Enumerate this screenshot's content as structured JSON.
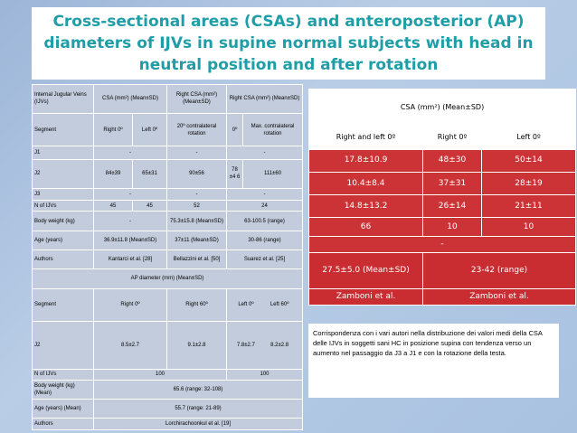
{
  "title": "Cross-sectional areas (CSAs) and anteroposterior (AP) diameters of IJVs in supine normal subjects with head in neutral position and after rotation",
  "left_table": {
    "r1": [
      "Internal Jugular Veins (IJVs)",
      "CSA (mm²) (Mean±SD)",
      "Right CSA (mm²) (Mean±SD)",
      "Right CSA (mm²) (Mean±SD)"
    ],
    "r2": [
      "Segment",
      "Right 0º",
      "Left 0º",
      "20º contralateral rotation",
      "0º",
      "Max. contralateral rotation"
    ],
    "r3": [
      "J1",
      "-",
      "-",
      "-"
    ],
    "r4": [
      "J2",
      "84±39",
      "65±31",
      "90±56",
      "78 ±4 6",
      "111±60"
    ],
    "r5": [
      "J3",
      "-",
      "-",
      "-"
    ],
    "r6": [
      "N of IJVs",
      "45",
      "45",
      "52",
      "24"
    ],
    "r7": [
      "Body weight (kg)",
      "-",
      "75.3±15.8 (Mean±SD)",
      "63-100.5 (range)"
    ],
    "r8": [
      "Age (years)",
      "36.9±11.8 (Mean±SD)",
      "37±11 (Mean±SD)",
      "30-86 (range)"
    ],
    "r9": [
      "Authors",
      "Kantarci et al. [28]",
      "Bellazzini et al. [50]",
      "Suarez et al. [25]"
    ],
    "r10": [
      "AP diameter (mm) (Mean±SD)"
    ],
    "r11": [
      "Segment",
      "Right 0º",
      "Right 60º",
      "Left 0º",
      "Left 60º"
    ],
    "r12": [
      "J2",
      "8.5±2.7",
      "9.1±2.8",
      "7.8±2.7",
      "8.2±2.8"
    ],
    "r13": [
      "N of IJVs",
      "100",
      "100"
    ],
    "r14": [
      "Body weight (kg) (Mean)",
      "65.6 (range: 32-108)"
    ],
    "r15": [
      "Age (years) (Mean)",
      "55.7 (range: 21-89)"
    ],
    "r16": [
      "Authors",
      "Lorchirachoonkul et al. [19]"
    ]
  },
  "right_table": {
    "header": "CSA (mm²) (Mean±SD)",
    "cols": [
      "Right and left 0º",
      "Right 0º",
      "Left 0º"
    ],
    "rows": [
      [
        "17.8±10.9",
        "48±30",
        "50±14"
      ],
      [
        "10.4±8.4",
        "37±31",
        "28±19"
      ],
      [
        "14.8±13.2",
        "26±14",
        "21±11"
      ],
      [
        "66",
        "10",
        "10"
      ]
    ],
    "dash": "-",
    "stats": [
      "27.5±5.0 (Mean±SD)",
      "23-42 (range)"
    ],
    "authors": [
      "Zamboni et al.",
      "Zamboni et al."
    ]
  },
  "note": "Corrispondenza con i vari autori nella distribuzione dei valori medi della CSA delle IJVs  in soggetti sani HC in posizione supina con tendenza verso un aumento nel passaggio da J3 a J1 e con la rotazione della testa."
}
